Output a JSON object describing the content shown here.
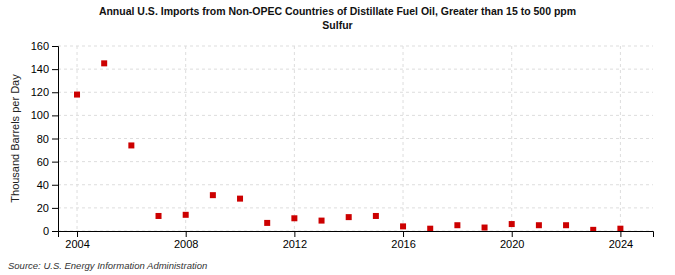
{
  "chart_data": {
    "type": "scatter",
    "title": "Annual U.S. Imports from Non-OPEC Countries of Distillate Fuel Oil, Greater than 15 to 500 ppm\nSulfur",
    "ylabel": "Thousand Barrels per Day",
    "annotations": [
      "Source: U.S. Energy Information Administration"
    ],
    "x": [
      2004,
      2005,
      2006,
      2007,
      2008,
      2009,
      2010,
      2011,
      2012,
      2013,
      2014,
      2015,
      2016,
      2017,
      2018,
      2019,
      2020,
      2021,
      2022,
      2023,
      2024
    ],
    "values": [
      118,
      145,
      74,
      13,
      14,
      31,
      28,
      7,
      11,
      9,
      12,
      13,
      4,
      2,
      5,
      3,
      6,
      5,
      5,
      1,
      2
    ],
    "color": "#cc0000",
    "marker": "square",
    "xlim": [
      2003.3,
      2025.2
    ],
    "xticks": [
      2004,
      2008,
      2012,
      2016,
      2020,
      2024
    ],
    "ylim": [
      0,
      160
    ],
    "yticks": [
      0,
      20,
      40,
      60,
      80,
      100,
      120,
      140,
      160
    ],
    "grid": true
  }
}
